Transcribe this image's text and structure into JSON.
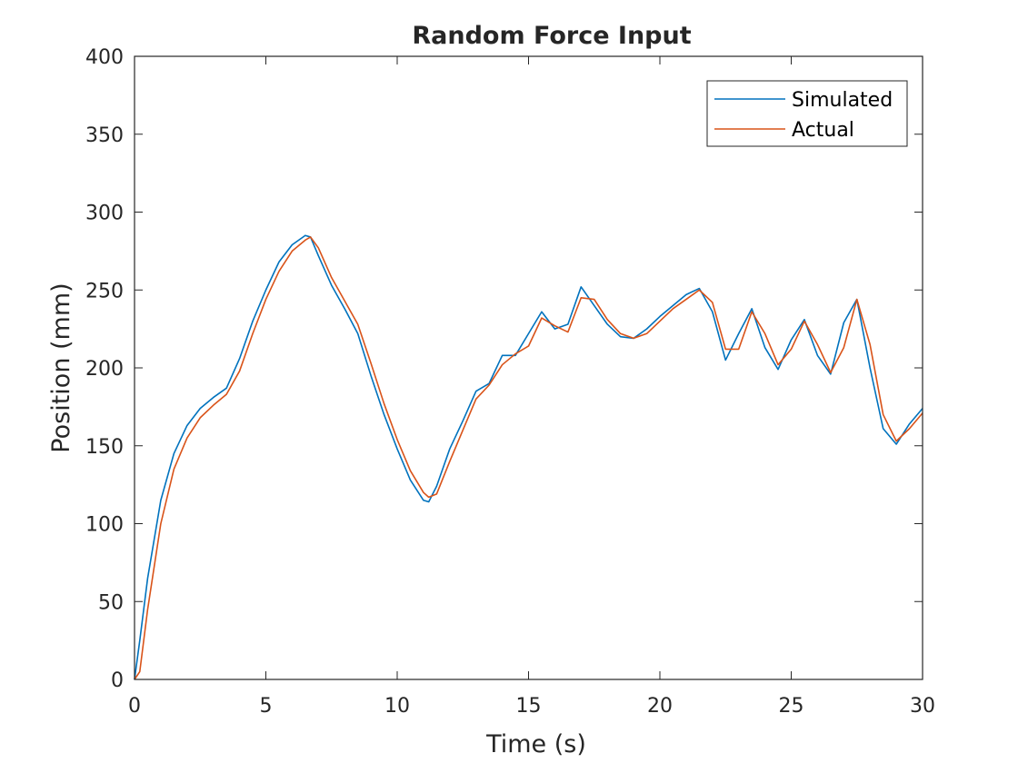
{
  "chart_data": {
    "type": "line",
    "title": "Random Force Input",
    "xlabel": "Time (s)",
    "ylabel": "Position (mm)",
    "xlim": [
      0,
      30
    ],
    "ylim": [
      0,
      400
    ],
    "xticks": [
      "0",
      "5",
      "10",
      "15",
      "20",
      "25",
      "30"
    ],
    "yticks": [
      "0",
      "50",
      "100",
      "150",
      "200",
      "250",
      "300",
      "350",
      "400"
    ],
    "grid": false,
    "legend": "top-right",
    "series": [
      {
        "name": "Simulated",
        "color": "#0072BD",
        "x": [
          0,
          0.2,
          0.5,
          1,
          1.5,
          2,
          2.5,
          3,
          3.5,
          4,
          4.5,
          5,
          5.5,
          6,
          6.5,
          6.7,
          7,
          7.5,
          8,
          8.5,
          9,
          9.5,
          10,
          10.5,
          11,
          11.2,
          11.5,
          12,
          12.5,
          13,
          13.5,
          14,
          14.5,
          15,
          15.5,
          16,
          16.5,
          17,
          17.5,
          18,
          18.5,
          19,
          19.5,
          20,
          20.5,
          21,
          21.5,
          22,
          22.5,
          23,
          23.5,
          24,
          24.5,
          25,
          25.5,
          26,
          26.5,
          27,
          27.5,
          28,
          28.5,
          29,
          29.5,
          30
        ],
        "values": [
          0,
          25,
          65,
          115,
          145,
          163,
          174,
          181,
          187,
          206,
          230,
          250,
          268,
          279,
          285,
          284,
          272,
          253,
          238,
          222,
          195,
          170,
          148,
          128,
          115,
          114,
          124,
          148,
          166,
          185,
          190,
          208,
          208,
          222,
          236,
          225,
          228,
          252,
          240,
          228,
          220,
          219,
          225,
          233,
          240,
          247,
          251,
          236,
          205,
          222,
          238,
          213,
          199,
          218,
          231,
          208,
          196,
          229,
          244,
          200,
          161,
          151,
          164,
          174
        ]
      },
      {
        "name": "Actual",
        "color": "#D95319",
        "x": [
          0,
          0.2,
          0.5,
          1,
          1.5,
          2,
          2.5,
          3,
          3.5,
          4,
          4.5,
          5,
          5.5,
          6,
          6.5,
          6.7,
          7,
          7.5,
          8,
          8.5,
          9,
          9.5,
          10,
          10.5,
          11,
          11.2,
          11.5,
          12,
          12.5,
          13,
          13.5,
          14,
          14.5,
          15,
          15.5,
          16,
          16.5,
          17,
          17.5,
          18,
          18.5,
          19,
          19.5,
          20,
          20.5,
          21,
          21.5,
          22,
          22.5,
          23,
          23.5,
          24,
          24.5,
          25,
          25.5,
          26,
          26.5,
          27,
          27.5,
          28,
          28.5,
          29,
          29.5,
          30
        ],
        "values": [
          0,
          5,
          45,
          100,
          135,
          155,
          168,
          176,
          183,
          198,
          222,
          244,
          262,
          275,
          282,
          284,
          277,
          258,
          243,
          228,
          203,
          177,
          154,
          134,
          120,
          117,
          119,
          140,
          160,
          180,
          189,
          202,
          209,
          214,
          232,
          227,
          223,
          245,
          244,
          231,
          222,
          219,
          222,
          230,
          238,
          244,
          250,
          242,
          212,
          212,
          236,
          222,
          202,
          212,
          230,
          215,
          197,
          213,
          244,
          215,
          170,
          153,
          161,
          171
        ]
      }
    ]
  }
}
